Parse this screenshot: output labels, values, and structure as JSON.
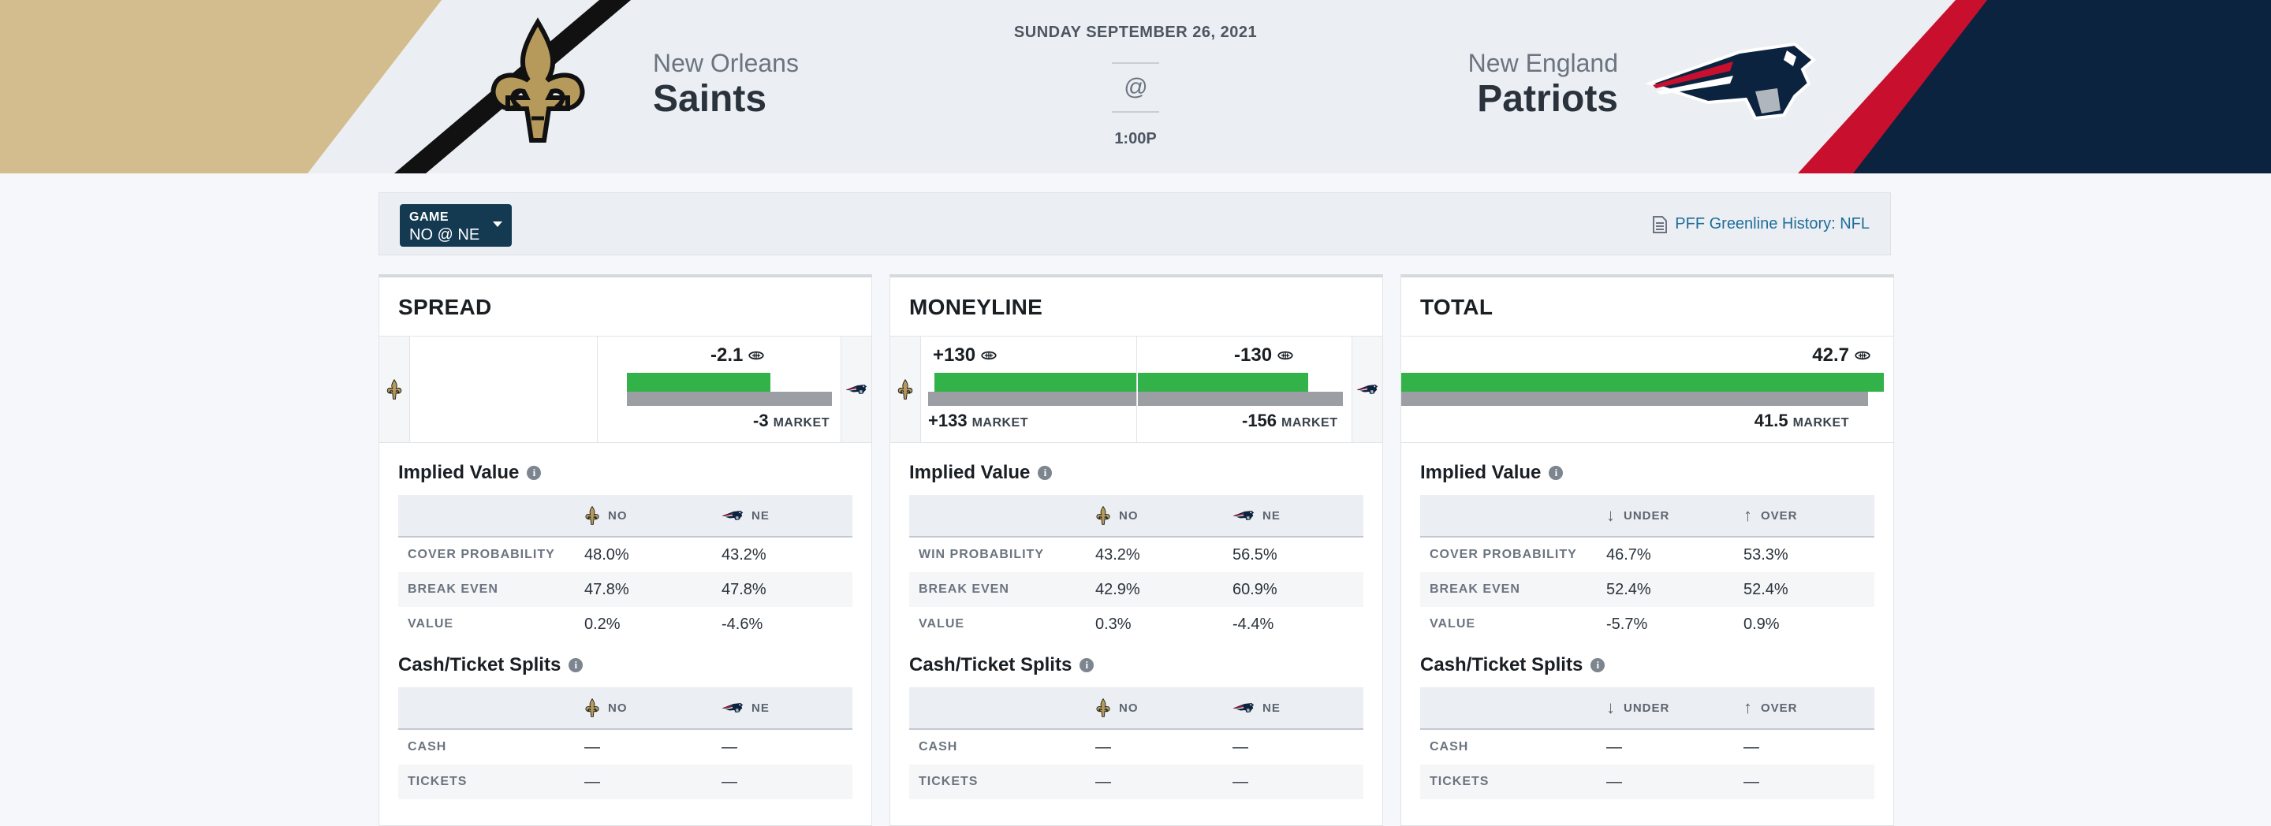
{
  "header": {
    "date": "SUNDAY SEPTEMBER 26, 2021",
    "at_symbol": "@",
    "time": "1:00P",
    "home": {
      "city": "New Orleans",
      "name": "Saints",
      "abbr": "NO",
      "color": "#d3bc8d"
    },
    "away": {
      "city": "New England",
      "name": "Patriots",
      "abbr": "NE",
      "color": "#0c2340"
    }
  },
  "filter": {
    "game_label": "GAME",
    "game_value": "NO @ NE",
    "history_link": "PFF Greenline History: NFL"
  },
  "spread": {
    "title": "SPREAD",
    "greenline": "-2.1",
    "market": "-3",
    "market_label": "MARKET",
    "implied_title": "Implied Value",
    "cols": [
      "NO",
      "NE"
    ],
    "rows": [
      {
        "label": "COVER PROBABILITY",
        "a": "48.0%",
        "b": "43.2%"
      },
      {
        "label": "BREAK EVEN",
        "a": "47.8%",
        "b": "47.8%"
      },
      {
        "label": "VALUE",
        "a": "0.2%",
        "b": "-4.6%"
      }
    ],
    "splits_title": "Cash/Ticket Splits",
    "splits": [
      {
        "label": "CASH",
        "a": "—",
        "b": "—"
      },
      {
        "label": "TICKETS",
        "a": "—",
        "b": "—"
      }
    ]
  },
  "moneyline": {
    "title": "MONEYLINE",
    "home_greenline": "+130",
    "away_greenline": "-130",
    "home_market": "+133",
    "away_market": "-156",
    "market_label": "MARKET",
    "implied_title": "Implied Value",
    "cols": [
      "NO",
      "NE"
    ],
    "rows": [
      {
        "label": "WIN PROBABILITY",
        "a": "43.2%",
        "b": "56.5%"
      },
      {
        "label": "BREAK EVEN",
        "a": "42.9%",
        "b": "60.9%"
      },
      {
        "label": "VALUE",
        "a": "0.3%",
        "b": "-4.4%"
      }
    ],
    "splits_title": "Cash/Ticket Splits",
    "splits": [
      {
        "label": "CASH",
        "a": "—",
        "b": "—"
      },
      {
        "label": "TICKETS",
        "a": "—",
        "b": "—"
      }
    ]
  },
  "total": {
    "title": "TOTAL",
    "greenline": "42.7",
    "market": "41.5",
    "market_label": "MARKET",
    "implied_title": "Implied Value",
    "cols": [
      "UNDER",
      "OVER"
    ],
    "rows": [
      {
        "label": "COVER PROBABILITY",
        "a": "46.7%",
        "b": "53.3%"
      },
      {
        "label": "BREAK EVEN",
        "a": "52.4%",
        "b": "52.4%"
      },
      {
        "label": "VALUE",
        "a": "-5.7%",
        "b": "0.9%"
      }
    ],
    "splits_title": "Cash/Ticket Splits",
    "splits": [
      {
        "label": "CASH",
        "a": "—",
        "b": "—"
      },
      {
        "label": "TICKETS",
        "a": "—",
        "b": "—"
      }
    ]
  },
  "colors": {
    "greenline_bar": "#33b24a",
    "market_bar": "#9b9ea3",
    "accent": "#143a52",
    "link": "#1f6d9a"
  },
  "icons": [
    "saints-logo-icon",
    "patriots-logo-icon",
    "greenline-icon",
    "info-icon",
    "document-icon",
    "arrow-down-icon",
    "arrow-up-icon",
    "caret-down-icon"
  ]
}
